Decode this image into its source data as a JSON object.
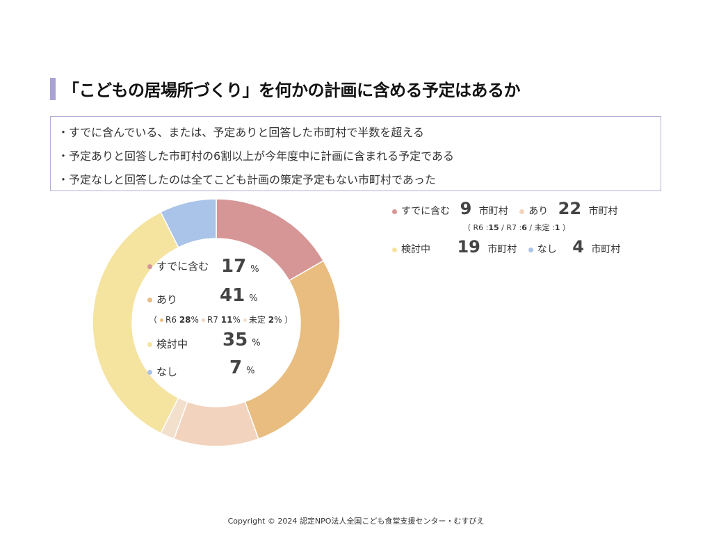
{
  "title": "「こどもの居場所づくり」を何かの計画に含める予定はあるか",
  "summary": [
    "・すでに含んでいる、または、予定ありと回答した市町村で半数を超える",
    "・予定ありと回答した市町村の6割以上が今年度中に計画に含まれる予定である",
    "・予定なしと回答したのは全てこども計画の策定予定もない市町村であった"
  ],
  "colors": {
    "included": "#d69696",
    "yes": "#e8bd7f",
    "yes_r6": "#e8bd7f",
    "yes_r7": "#f2d3bd",
    "yes_undecided": "#f3e0cc",
    "considering": "#f5e3a0",
    "none": "#a9c4e8",
    "title_bar": "#a9a3d3",
    "box_border": "#b3aed6"
  },
  "chart_data": {
    "type": "pie",
    "donut": true,
    "slices": [
      {
        "label": "すでに含む",
        "value": 9,
        "color": "#d69696"
      },
      {
        "label": "R6",
        "value": 15,
        "color": "#e8bd7f"
      },
      {
        "label": "R7",
        "value": 6,
        "color": "#f2d3bd"
      },
      {
        "label": "未定",
        "value": 1,
        "color": "#f3e0cc"
      },
      {
        "label": "検討中",
        "value": 19,
        "color": "#f5e3a0"
      },
      {
        "label": "なし",
        "value": 4,
        "color": "#a9c4e8"
      }
    ],
    "center_labels": [
      {
        "label": "すでに含む",
        "percent": "17",
        "unit": "%"
      },
      {
        "label": "あり",
        "percent": "41",
        "unit": "%"
      },
      {
        "label": "検討中",
        "percent": "35",
        "unit": "%"
      },
      {
        "label": "なし",
        "percent": "7",
        "unit": "%"
      }
    ],
    "sub_breakdown": {
      "open": "（",
      "close": "）",
      "items": [
        {
          "label": "R6",
          "percent": "28",
          "unit": "%"
        },
        {
          "label": "R7",
          "percent": "11",
          "unit": "%"
        },
        {
          "label": "未定",
          "percent": "2",
          "unit": "%"
        }
      ]
    }
  },
  "legend": {
    "unit": "市町村",
    "included": {
      "label": "すでに含む",
      "count": "9"
    },
    "yes": {
      "label": "あり",
      "count": "22"
    },
    "yes_detail": {
      "open": "（",
      "r6_label": "R6 :",
      "r6": "15",
      "r7_label": "/ R7 :",
      "r7": "6",
      "undecided_label": "/ 未定 :",
      "undecided": "1",
      "close": "）"
    },
    "considering": {
      "label": "検討中",
      "count": "19"
    },
    "none": {
      "label": "なし",
      "count": "4"
    }
  },
  "footer": "Copyright © 2024 認定NPO法人全国こども食堂支援センター・むすびえ"
}
